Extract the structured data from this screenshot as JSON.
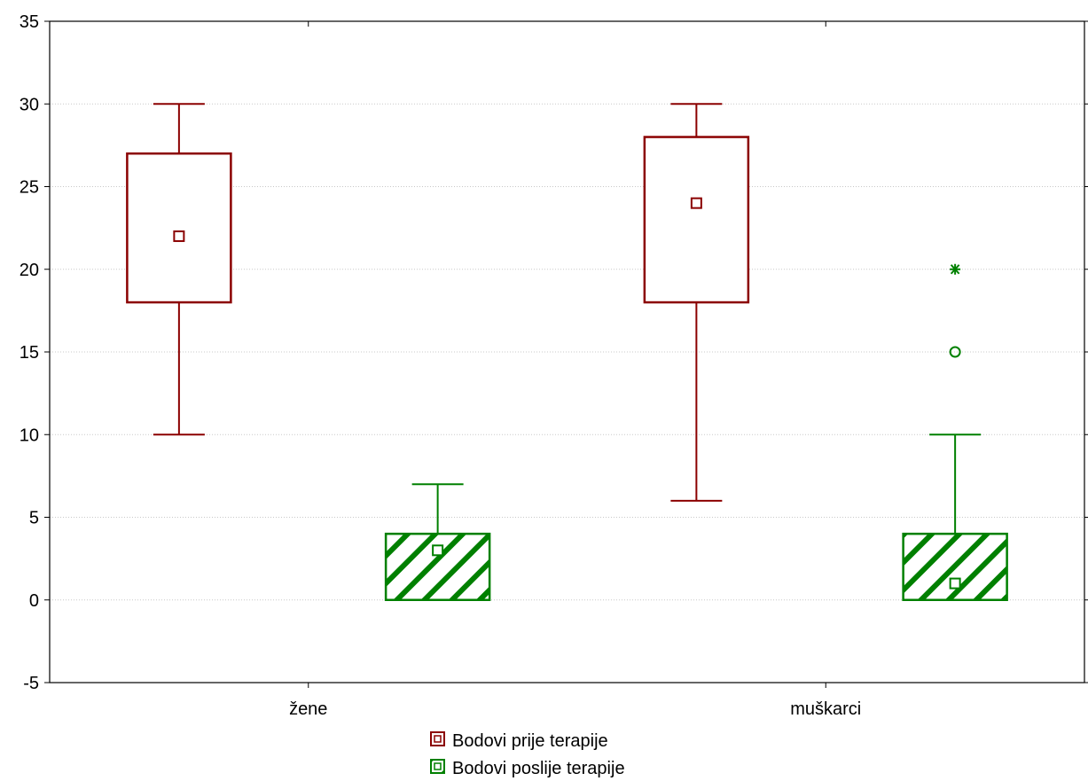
{
  "chart_data": {
    "type": "box",
    "title": "",
    "xlabel": "",
    "ylabel": "",
    "ylim": [
      -5,
      35
    ],
    "yticks": [
      "35",
      "30",
      "25",
      "20",
      "15",
      "10",
      "5",
      "0",
      "-5"
    ],
    "ytick_values": [
      35,
      30,
      25,
      20,
      15,
      10,
      5,
      0,
      -5
    ],
    "grid": true,
    "legend_placement": "bottom-center",
    "categories": [
      "žene",
      "muškarci"
    ],
    "series": [
      {
        "name": "Bodovi prije terapije",
        "color": "#8b0000",
        "hatch": false,
        "boxes": [
          {
            "category": "žene",
            "whisker_low": 10,
            "q1": 18,
            "median": 22,
            "q3": 27,
            "whisker_high": 30,
            "outliers": [],
            "extremes": []
          },
          {
            "category": "muškarci",
            "whisker_low": 6,
            "q1": 18,
            "median": 24,
            "q3": 28,
            "whisker_high": 30,
            "outliers": [],
            "extremes": []
          }
        ]
      },
      {
        "name": "Bodovi poslije terapije",
        "color": "#008000",
        "hatch": true,
        "boxes": [
          {
            "category": "žene",
            "whisker_low": 0,
            "q1": 0,
            "median": 3,
            "q3": 4,
            "whisker_high": 7,
            "outliers": [],
            "extremes": []
          },
          {
            "category": "muškarci",
            "whisker_low": 0,
            "q1": 0,
            "median": 1,
            "q3": 4,
            "whisker_high": 10,
            "outliers": [
              15
            ],
            "extremes": [
              20
            ]
          }
        ]
      }
    ]
  }
}
